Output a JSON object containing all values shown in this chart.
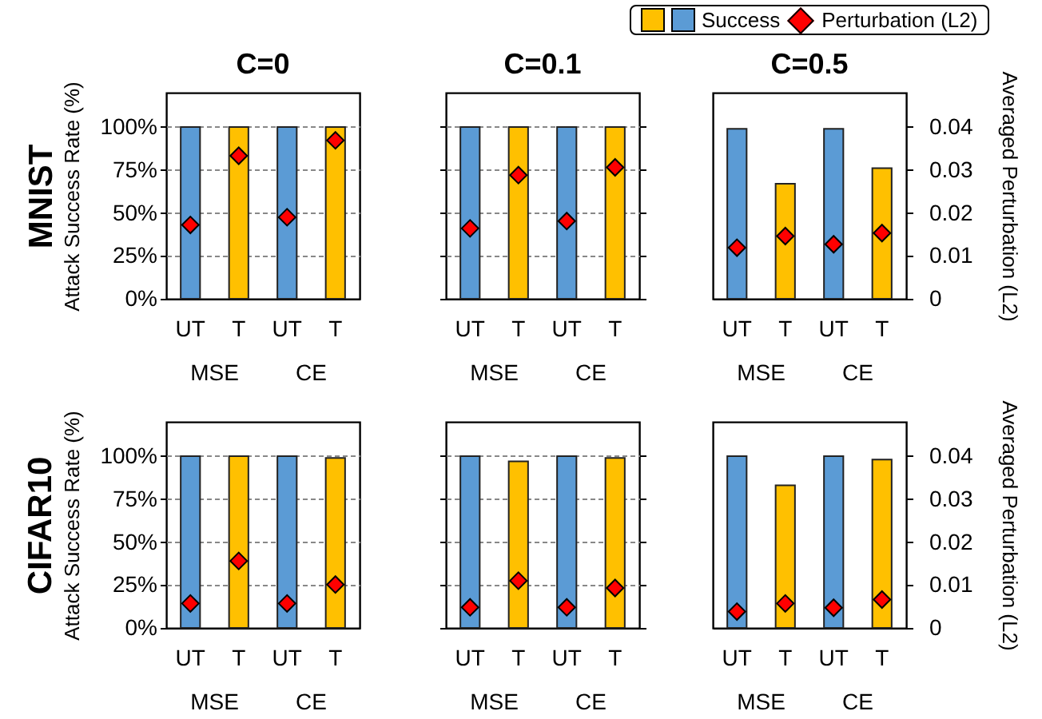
{
  "chart_data": [
    {
      "type": "bar",
      "title": "C=0",
      "ylabel": "Attack Success Rate (%)",
      "categories": [
        "UT",
        "T",
        "UT",
        "T"
      ],
      "annotations": [
        "MSE",
        "CE",
        "MNIST"
      ],
      "grid": "y",
      "ylim": [
        0,
        120
      ],
      "yticks": [
        {
          "value": 0,
          "label": "0%"
        },
        {
          "value": 25,
          "label": "25%"
        },
        {
          "value": 50,
          "label": "50%"
        },
        {
          "value": 75,
          "label": "75%"
        },
        {
          "value": 100,
          "label": "100%"
        }
      ],
      "y2lim": [
        0,
        0.048
      ],
      "series": [
        {
          "colors": [
            "#5b9bd5",
            "#ffc000",
            "#5b9bd5",
            "#ffc000"
          ],
          "values": [
            100,
            100,
            100,
            100
          ]
        },
        {
          "type": "scatter",
          "axis": "y2",
          "color": "#ff0000",
          "marker": "diamond",
          "values": [
            0.0172,
            0.0333,
            0.019,
            0.0369
          ]
        }
      ]
    },
    {
      "type": "bar",
      "title": "C=0.1",
      "categories": [
        "UT",
        "T",
        "UT",
        "T"
      ],
      "annotations": [
        "MSE",
        "CE"
      ],
      "tick_labels": "x",
      "grid": "y",
      "ylim": [
        0,
        120
      ],
      "yticks": [
        0,
        25,
        50,
        75,
        100
      ],
      "y2lim": [
        0,
        0.048
      ],
      "y2ticks": [
        0,
        0.01,
        0.02,
        0.03,
        0.04
      ],
      "series": [
        {
          "colors": [
            "#5b9bd5",
            "#ffc000",
            "#5b9bd5",
            "#ffc000"
          ],
          "values": [
            100,
            100,
            100,
            100
          ]
        },
        {
          "type": "scatter",
          "axis": "y2",
          "color": "#ff0000",
          "marker": "diamond",
          "values": [
            0.0164,
            0.0288,
            0.0181,
            0.0306
          ]
        }
      ]
    },
    {
      "type": "bar",
      "title": "C=0.5",
      "y2label": "Averaged Perturbation (L2)",
      "categories": [
        "UT",
        "T",
        "UT",
        "T"
      ],
      "annotations": [
        "MSE",
        "CE"
      ],
      "grid": "y",
      "legend": "top",
      "ylim": [
        0,
        120
      ],
      "y2lim": [
        0,
        0.048
      ],
      "y2ticks": [
        0,
        0.01,
        0.02,
        0.03,
        0.04
      ],
      "series": [
        {
          "name": "Success",
          "colors": [
            "#5b9bd5",
            "#ffc000",
            "#5b9bd5",
            "#ffc000"
          ],
          "values": [
            99,
            67,
            99,
            76
          ]
        },
        {
          "name": "Perturbation (L2)",
          "type": "scatter",
          "axis": "y2",
          "color": "#ff0000",
          "marker": "diamond",
          "values": [
            0.0119,
            0.0146,
            0.0127,
            0.0153
          ]
        }
      ]
    },
    {
      "type": "bar",
      "ylabel": "Attack Success Rate (%)",
      "categories": [
        "UT",
        "T",
        "UT",
        "T"
      ],
      "annotations": [
        "MSE",
        "CE",
        "CIFAR10"
      ],
      "grid": "y",
      "ylim": [
        0,
        120
      ],
      "yticks": [
        {
          "value": 0,
          "label": "0%"
        },
        {
          "value": 25,
          "label": "25%"
        },
        {
          "value": 50,
          "label": "50%"
        },
        {
          "value": 75,
          "label": "75%"
        },
        {
          "value": 100,
          "label": "100%"
        }
      ],
      "y2lim": [
        0,
        0.048
      ],
      "series": [
        {
          "colors": [
            "#5b9bd5",
            "#ffc000",
            "#5b9bd5",
            "#ffc000"
          ],
          "values": [
            100,
            100,
            100,
            99
          ]
        },
        {
          "type": "scatter",
          "axis": "y2",
          "color": "#ff0000",
          "marker": "diamond",
          "values": [
            0.0057,
            0.0156,
            0.0057,
            0.0101
          ]
        }
      ]
    },
    {
      "type": "bar",
      "categories": [
        "UT",
        "T",
        "UT",
        "T"
      ],
      "annotations": [
        "MSE",
        "CE"
      ],
      "tick_labels": "x",
      "grid": "y",
      "ylim": [
        0,
        120
      ],
      "yticks": [
        0,
        25,
        50,
        75,
        100
      ],
      "y2lim": [
        0,
        0.048
      ],
      "y2ticks": [
        0,
        0.01,
        0.02,
        0.03,
        0.04
      ],
      "series": [
        {
          "colors": [
            "#5b9bd5",
            "#ffc000",
            "#5b9bd5",
            "#ffc000"
          ],
          "values": [
            100,
            97,
            100,
            99
          ]
        },
        {
          "type": "scatter",
          "axis": "y2",
          "color": "#ff0000",
          "marker": "diamond",
          "values": [
            0.0048,
            0.011,
            0.0048,
            0.0093
          ]
        }
      ]
    },
    {
      "type": "bar",
      "y2label": "Averaged Perturbation (L2)",
      "categories": [
        "UT",
        "T",
        "UT",
        "T"
      ],
      "annotations": [
        "MSE",
        "CE"
      ],
      "grid": "y",
      "ylim": [
        0,
        120
      ],
      "y2lim": [
        0,
        0.048
      ],
      "y2ticks": [
        0,
        0.01,
        0.02,
        0.03,
        0.04
      ],
      "series": [
        {
          "colors": [
            "#5b9bd5",
            "#ffc000",
            "#5b9bd5",
            "#ffc000"
          ],
          "values": [
            100,
            83,
            100,
            98
          ]
        },
        {
          "type": "scatter",
          "axis": "y2",
          "color": "#ff0000",
          "marker": "diamond",
          "values": [
            0.0038,
            0.0057,
            0.0047,
            0.0066
          ]
        }
      ]
    }
  ]
}
